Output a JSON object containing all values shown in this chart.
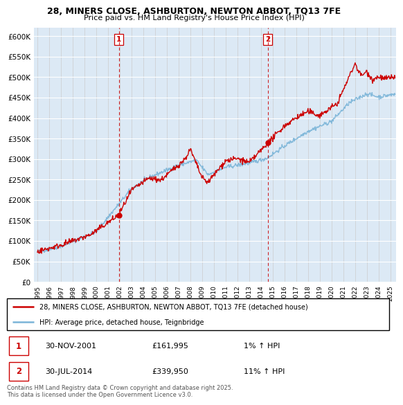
{
  "title1": "28, MINERS CLOSE, ASHBURTON, NEWTON ABBOT, TQ13 7FE",
  "title2": "Price paid vs. HM Land Registry's House Price Index (HPI)",
  "ylim": [
    0,
    620000
  ],
  "yticks": [
    0,
    50000,
    100000,
    150000,
    200000,
    250000,
    300000,
    350000,
    400000,
    450000,
    500000,
    550000,
    600000
  ],
  "ytick_labels": [
    "£0",
    "£50K",
    "£100K",
    "£150K",
    "£200K",
    "£250K",
    "£300K",
    "£350K",
    "£400K",
    "£450K",
    "£500K",
    "£550K",
    "£600K"
  ],
  "xlim_start": 1994.7,
  "xlim_end": 2025.5,
  "sale1_x": 2001.92,
  "sale1_y": 161995,
  "sale1_label": "1",
  "sale1_date": "30-NOV-2001",
  "sale1_price": "£161,995",
  "sale1_hpi": "1% ↑ HPI",
  "sale2_x": 2014.58,
  "sale2_y": 339950,
  "sale2_label": "2",
  "sale2_date": "30-JUL-2014",
  "sale2_price": "£339,950",
  "sale2_hpi": "11% ↑ HPI",
  "hpi_color": "#7ab4d8",
  "price_color": "#cc0000",
  "legend_line1": "28, MINERS CLOSE, ASHBURTON, NEWTON ABBOT, TQ13 7FE (detached house)",
  "legend_line2": "HPI: Average price, detached house, Teignbridge",
  "footer": "Contains HM Land Registry data © Crown copyright and database right 2025.\nThis data is licensed under the Open Government Licence v3.0.",
  "background_color": "#dce9f5"
}
